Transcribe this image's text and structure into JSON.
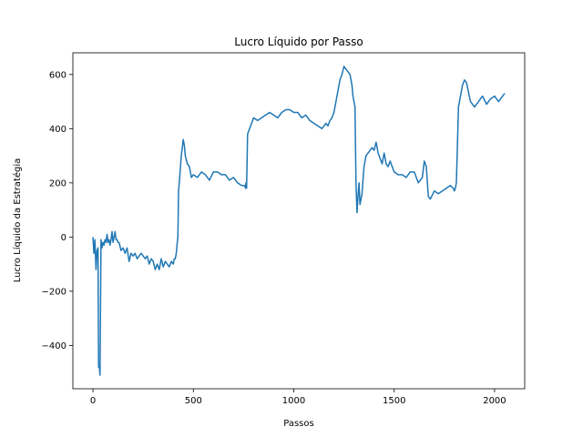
{
  "chart_data": {
    "type": "line",
    "title": "Lucro Líquido por Passo",
    "xlabel": "Passos",
    "ylabel": "Lucro Líquido da Estratégia",
    "xlim": [
      -100,
      2150
    ],
    "ylim": [
      -560,
      680
    ],
    "x_ticks": [
      0,
      500,
      1000,
      1500,
      2000
    ],
    "y_ticks": [
      -400,
      -200,
      0,
      200,
      400,
      600
    ],
    "grid": false,
    "line_color": "#1f77b4",
    "series": [
      {
        "x": [
          0,
          5,
          10,
          15,
          20,
          25,
          28,
          32,
          35,
          40,
          45,
          50,
          55,
          60,
          65,
          70,
          75,
          80,
          85,
          90,
          95,
          100,
          105,
          110,
          115,
          120,
          125,
          130,
          140,
          150,
          160,
          170,
          180,
          190,
          200,
          210,
          220,
          230,
          240,
          250,
          260,
          270,
          280,
          290,
          300,
          310,
          320,
          330,
          340,
          350,
          360,
          370,
          380,
          390,
          400,
          405,
          410,
          415,
          420,
          423,
          426,
          430,
          435,
          440,
          445,
          450,
          455,
          460,
          470,
          480,
          490,
          500,
          520,
          540,
          560,
          580,
          600,
          620,
          640,
          660,
          680,
          700,
          720,
          740,
          755,
          760,
          762,
          765,
          770,
          780,
          790,
          800,
          820,
          840,
          860,
          880,
          900,
          920,
          940,
          960,
          980,
          1000,
          1020,
          1040,
          1060,
          1080,
          1100,
          1120,
          1140,
          1160,
          1170,
          1180,
          1190,
          1200,
          1210,
          1220,
          1230,
          1240,
          1250,
          1260,
          1270,
          1280,
          1290,
          1295,
          1300,
          1305,
          1310,
          1315,
          1320,
          1325,
          1330,
          1340,
          1350,
          1360,
          1370,
          1380,
          1390,
          1400,
          1410,
          1420,
          1430,
          1440,
          1450,
          1460,
          1470,
          1480,
          1490,
          1500,
          1520,
          1540,
          1560,
          1580,
          1600,
          1620,
          1630,
          1640,
          1650,
          1660,
          1670,
          1680,
          1700,
          1720,
          1740,
          1760,
          1780,
          1795,
          1800,
          1805,
          1810,
          1820,
          1830,
          1840,
          1850,
          1860,
          1880,
          1900,
          1920,
          1940,
          1960,
          1980,
          2000,
          2020,
          2040,
          2050
        ],
        "y": [
          0,
          -60,
          -10,
          -120,
          -50,
          -40,
          -480,
          -480,
          -510,
          -10,
          -40,
          -20,
          -30,
          -10,
          -20,
          10,
          -20,
          -10,
          -30,
          -10,
          20,
          -20,
          0,
          20,
          -10,
          -10,
          -20,
          -20,
          -50,
          -40,
          -60,
          -40,
          -90,
          -60,
          -70,
          -60,
          -80,
          -70,
          -60,
          -70,
          -80,
          -70,
          -100,
          -80,
          -90,
          -120,
          -100,
          -120,
          -80,
          -110,
          -90,
          -100,
          -110,
          -90,
          -100,
          -80,
          -80,
          -60,
          -20,
          0,
          170,
          200,
          250,
          300,
          330,
          360,
          340,
          300,
          270,
          260,
          220,
          230,
          220,
          240,
          230,
          210,
          240,
          240,
          230,
          230,
          210,
          220,
          200,
          190,
          190,
          180,
          200,
          180,
          380,
          400,
          420,
          440,
          430,
          440,
          450,
          460,
          450,
          440,
          460,
          470,
          470,
          460,
          460,
          440,
          450,
          430,
          420,
          410,
          400,
          420,
          410,
          430,
          440,
          460,
          500,
          540,
          580,
          600,
          630,
          620,
          610,
          600,
          560,
          520,
          500,
          480,
          200,
          90,
          150,
          200,
          120,
          160,
          260,
          300,
          310,
          320,
          330,
          320,
          350,
          310,
          290,
          270,
          310,
          270,
          260,
          280,
          260,
          240,
          230,
          230,
          220,
          240,
          240,
          200,
          210,
          220,
          280,
          260,
          150,
          140,
          170,
          160,
          170,
          180,
          190,
          180,
          170,
          180,
          200,
          480,
          520,
          560,
          580,
          570,
          500,
          480,
          500,
          520,
          490,
          510,
          520,
          500,
          520,
          530
        ]
      }
    ]
  }
}
